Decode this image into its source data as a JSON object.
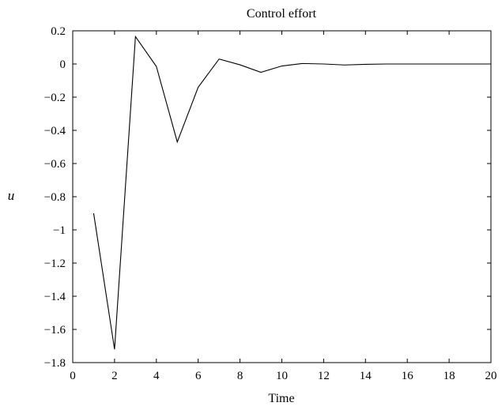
{
  "chart_data": {
    "type": "line",
    "title": "Control effort",
    "xlabel": "Time",
    "ylabel": "u",
    "xlim": [
      0,
      20
    ],
    "ylim": [
      -1.8,
      0.2
    ],
    "xticks": [
      0,
      2,
      4,
      6,
      8,
      10,
      12,
      14,
      16,
      18,
      20
    ],
    "xtick_labels": [
      "0",
      "2",
      "4",
      "6",
      "8",
      "10",
      "12",
      "14",
      "16",
      "18",
      "20"
    ],
    "yticks": [
      0.2,
      0,
      -0.2,
      -0.4,
      -0.6,
      -0.8,
      -1,
      -1.2,
      -1.4,
      -1.6,
      -1.8
    ],
    "ytick_labels": [
      "0.2",
      "0",
      "−0.2",
      "−0.4",
      "−0.6",
      "−0.8",
      "−1",
      "−1.2",
      "−1.4",
      "−1.6",
      "−1.8"
    ],
    "grid": false,
    "line_color": "#000000",
    "series": [
      {
        "x": [
          1,
          2,
          3,
          4,
          5,
          6,
          7,
          8,
          9,
          10,
          11,
          12,
          13,
          14,
          15,
          16,
          17,
          18,
          19,
          20
        ],
        "values": [
          -0.9,
          -1.72,
          0.165,
          -0.015,
          -0.47,
          -0.14,
          0.03,
          -0.005,
          -0.05,
          -0.012,
          0.003,
          0.0,
          -0.006,
          -0.002,
          0.0,
          0.0,
          0.0,
          0.0,
          0.0,
          0.0
        ]
      }
    ]
  }
}
